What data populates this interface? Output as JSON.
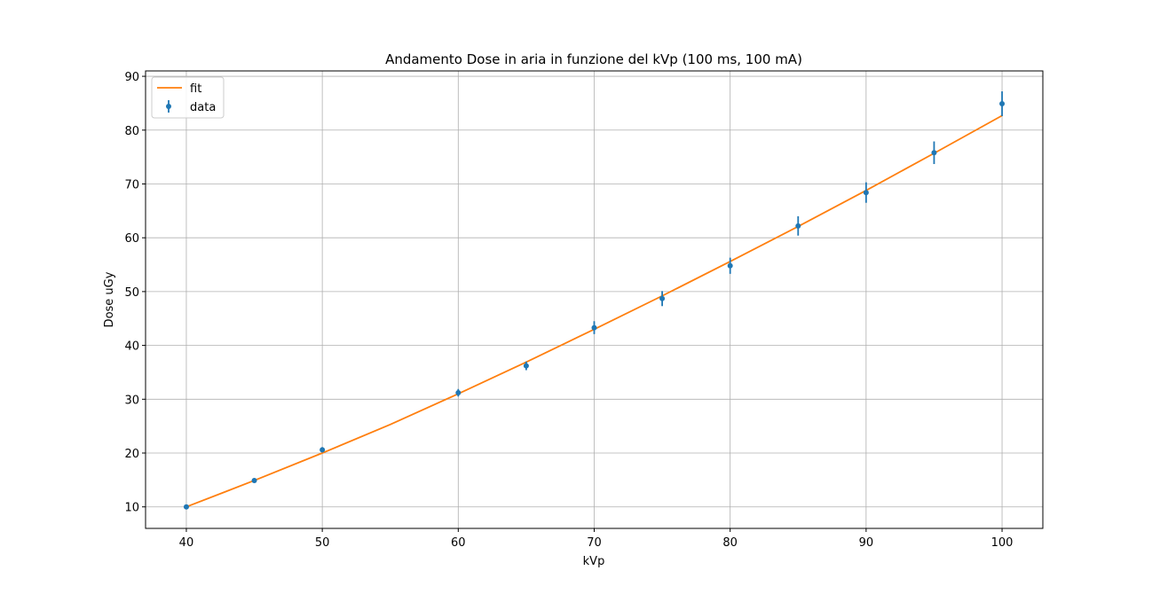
{
  "chart_data": {
    "type": "scatter",
    "title": "Andamento Dose in aria in funzione del kVp (100 ms, 100 mA)",
    "xlabel": "kVp",
    "ylabel": "Dose uGy",
    "xlim": [
      37,
      103
    ],
    "ylim": [
      6,
      91
    ],
    "xticks": [
      40,
      50,
      60,
      70,
      80,
      90,
      100
    ],
    "yticks": [
      10,
      20,
      30,
      40,
      50,
      60,
      70,
      80,
      90
    ],
    "grid": true,
    "legend_position": "top-left",
    "series": [
      {
        "name": "fit",
        "kind": "line",
        "color": "#ff7f0e",
        "x": [
          40,
          45,
          50,
          55,
          60,
          65,
          70,
          75,
          80,
          85,
          90,
          95,
          100
        ],
        "y": [
          10.0,
          14.9,
          20.0,
          25.3,
          31.0,
          36.9,
          43.0,
          49.2,
          55.6,
          62.1,
          68.8,
          75.7,
          82.7
        ]
      },
      {
        "name": "data",
        "kind": "errorbar",
        "color": "#1f77b4",
        "x": [
          40,
          45,
          50,
          60,
          65,
          70,
          75,
          80,
          85,
          90,
          95,
          100
        ],
        "y": [
          10.0,
          14.9,
          20.6,
          31.2,
          36.2,
          43.3,
          48.7,
          54.8,
          62.2,
          68.4,
          75.8,
          84.9
        ],
        "yerr": [
          0.2,
          0.3,
          0.5,
          0.7,
          0.8,
          1.2,
          1.4,
          1.5,
          1.8,
          1.9,
          2.1,
          2.3
        ]
      }
    ]
  }
}
